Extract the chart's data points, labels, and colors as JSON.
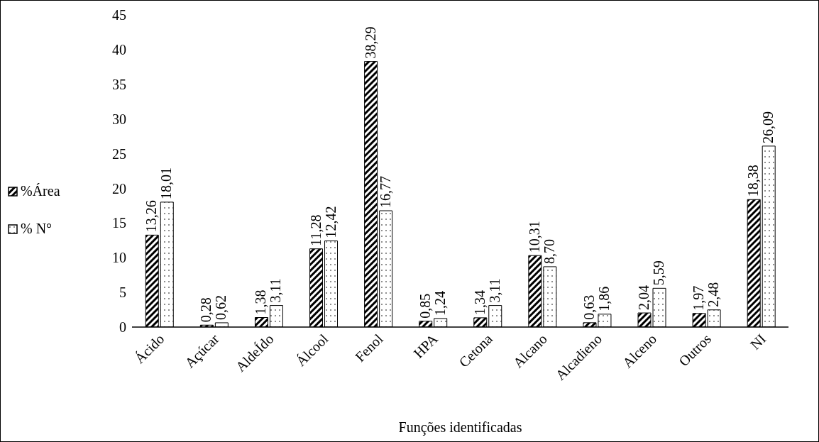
{
  "chart_data": {
    "type": "bar",
    "xlabel": "Funções identificadas",
    "categories": [
      "Ácido",
      "Açúcar",
      "AldeÍdo",
      "Álcool",
      "Fenol",
      "HPA",
      "Cetona",
      "Alcano",
      "Alcadieno",
      "Alceno",
      "Outros",
      "NI"
    ],
    "series": [
      {
        "name": "%Área",
        "color": "#000000",
        "values": [
          13.26,
          0.28,
          1.38,
          11.28,
          38.29,
          0.85,
          1.34,
          10.31,
          0.63,
          2.04,
          1.97,
          18.38
        ],
        "value_labels": [
          "13,26",
          "0,28",
          "1,38",
          "11,28",
          "38,29",
          "0,85",
          "1,34",
          "10,31",
          "0,63",
          "2,04",
          "1,97",
          "18,38"
        ]
      },
      {
        "name": "% N°",
        "color": "#000000",
        "values": [
          18.01,
          0.62,
          3.11,
          12.42,
          16.77,
          1.24,
          3.11,
          8.7,
          1.86,
          5.59,
          2.48,
          26.09
        ],
        "value_labels": [
          "18,01",
          "0,62",
          "3,11",
          "12,42",
          "16,77",
          "1,24",
          "3,11",
          "8,70",
          "1,86",
          "5,59",
          "2,48",
          "26,09"
        ]
      }
    ],
    "ylim": [
      0,
      45
    ],
    "yticks": [
      0,
      5,
      10,
      15,
      20,
      25,
      30,
      35,
      40,
      45
    ],
    "legend": "left"
  }
}
